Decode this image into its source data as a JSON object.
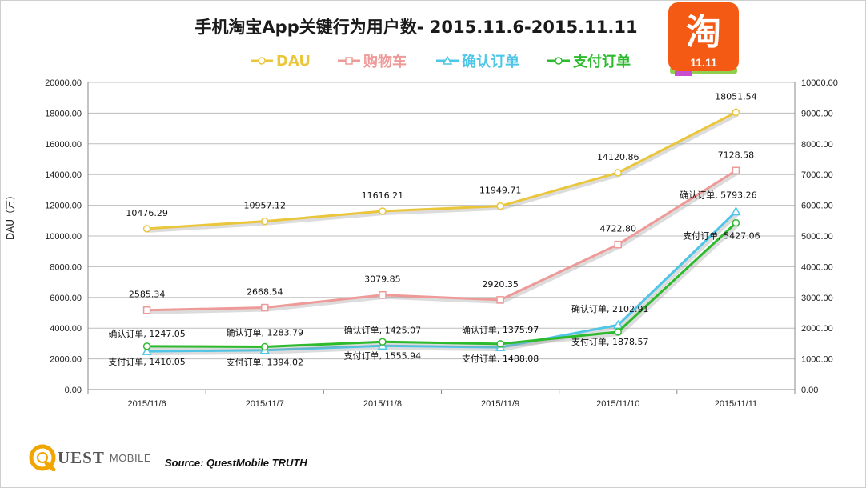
{
  "title": "手机淘宝App关键行为用户数- 2015.11.6-2015.11.11",
  "source": "Source: QuestMobile TRUTH",
  "brand": {
    "quest": "UEST",
    "mobile": "MOBILE",
    "app_logo_char": "淘",
    "app_logo_badge": "11.11"
  },
  "chart_data": {
    "type": "line",
    "title": "手机淘宝App关键行为用户数- 2015.11.6-2015.11.11",
    "ylabel": "DAU（万）",
    "categories": [
      "2015/11/6",
      "2015/11/7",
      "2015/11/8",
      "2015/11/9",
      "2015/11/10",
      "2015/11/11"
    ],
    "ylim_left": [
      0,
      20000
    ],
    "ylim_right": [
      0,
      10000
    ],
    "yticks_left": [
      "0.00",
      "2000.00",
      "4000.00",
      "6000.00",
      "8000.00",
      "10000.00",
      "12000.00",
      "14000.00",
      "16000.00",
      "18000.00",
      "20000.00"
    ],
    "yticks_right": [
      "0.00",
      "1000.00",
      "2000.00",
      "3000.00",
      "4000.00",
      "5000.00",
      "6000.00",
      "7000.00",
      "8000.00",
      "9000.00",
      "10000.00"
    ],
    "grid": true,
    "legend_position": "top",
    "series": [
      {
        "name": "DAU",
        "axis": "left",
        "color": "#EAC63B",
        "marker": "circle",
        "values": [
          10476.29,
          10957.12,
          11616.21,
          11949.71,
          14120.86,
          18051.54
        ],
        "labels": [
          "10476.29",
          "10957.12",
          "11616.21",
          "11949.71",
          "14120.86",
          "18051.54"
        ]
      },
      {
        "name": "购物车",
        "axis": "right",
        "color": "#EE9A98",
        "marker": "square",
        "values": [
          2585.34,
          2668.54,
          3079.85,
          2920.35,
          4722.8,
          7128.58
        ],
        "labels": [
          "2585.34",
          "2668.54",
          "3079.85",
          "2920.35",
          "4722.80",
          "7128.58"
        ]
      },
      {
        "name": "确认订单",
        "axis": "right",
        "color": "#4FC6E8",
        "marker": "triangle",
        "values": [
          1247.05,
          1283.79,
          1425.07,
          1375.97,
          2102.91,
          5793.26
        ],
        "labels": [
          "确认订单, 1247.05",
          "确认订单, 1283.79",
          "确认订单, 1425.07",
          "确认订单, 1375.97",
          "确认订单, 2102.91",
          "确认订单, 5793.26"
        ]
      },
      {
        "name": "支付订单",
        "axis": "right",
        "color": "#2DBA2D",
        "marker": "circle",
        "values": [
          1410.05,
          1394.02,
          1555.94,
          1488.08,
          1878.57,
          5427.06
        ],
        "labels": [
          "支付订单, 1410.05",
          "支付订单, 1394.02",
          "支付订单, 1555.94",
          "支付订单, 1488.08",
          "支付订单, 1878.57",
          "支付订单, 5427.06"
        ]
      }
    ]
  }
}
